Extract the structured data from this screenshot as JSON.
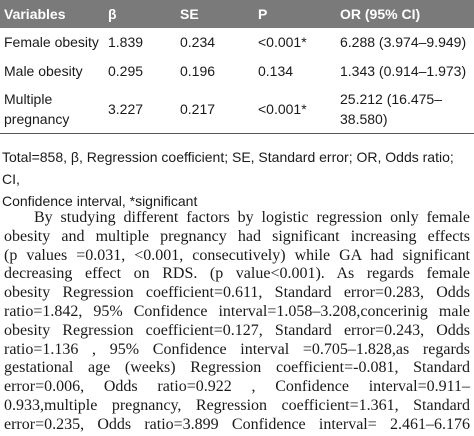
{
  "table": {
    "header": [
      "Variables",
      "β",
      "SE",
      "P",
      "OR (95% CI)"
    ],
    "rows": [
      [
        "Female obesity",
        "1.839",
        "0.234",
        "<0.001*",
        "6.288 (3.974–9.949)"
      ],
      [
        "Male obesity",
        "0.295",
        "0.196",
        "0.134",
        "1.343 (0.914–1.973)"
      ],
      [
        "Multiple pregnancy",
        "3.227",
        "0.217",
        "<0.001*",
        "25.212 (16.475–38.580)"
      ]
    ]
  },
  "footnote": [
    "Total=858, β, Regression coefficient; SE, Standard error; OR, Odds ratio; CI,",
    "Confidence interval, *significant"
  ],
  "paragraph": [
    "By studying different factors by logistic regression only female",
    "obesity and multiple pregnancy had significant increasing effects",
    "(p values =0.031, <0.001, consecutively) while GA had significant",
    "decreasing effect on RDS. (p value<0.001). As regards female",
    "obesity Regression coefficient=0.611, Standard error=0.283, Odds",
    "ratio=1.842, 95% Confidence interval=1.058–3.208,concerinig male",
    "obesity Regression coefficient=0.127, Standard error=0.243, Odds",
    "ratio=1.136 , 95% Confidence interval =0.705–1.828,as regards",
    "gestational age (weeks) Regression coefficient=-0.081, Standard",
    "error=0.006, Odds ratio=0.922 , Confidence interval=0.911–",
    "0.933,multiple pregnancy, Regression coefficient=1.361, Standard",
    "error=0.235, Odds ratio=3.899 Confidence interval= 2.461–6.176"
  ]
}
